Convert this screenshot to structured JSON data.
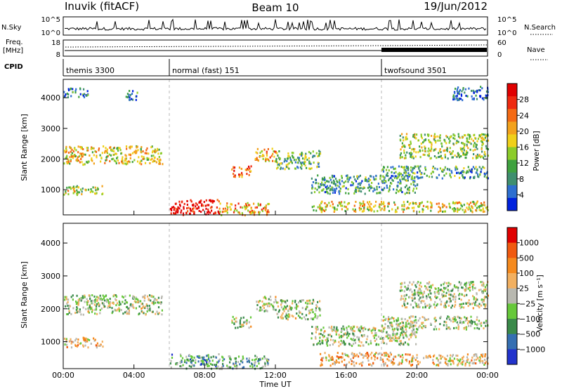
{
  "header": {
    "station": "Inuvik (fitACF)",
    "beam": "Beam 10",
    "date": "19/Jun/2012"
  },
  "top_panels": {
    "nsky_label": "N.Sky",
    "nsky_ticks": [
      "10^5",
      "10^0"
    ],
    "nsearch_label": "N.Search",
    "nsearch_ticks": [
      "10^5",
      "10^0"
    ],
    "freq_label": "Freq.",
    "freq_unit": "[MHz]",
    "freq_ticks": [
      "18",
      "8"
    ],
    "nave_label": "Nave",
    "nave_ticks": [
      "60",
      "0"
    ],
    "cpid_label": "CPID"
  },
  "cpid_modes": [
    {
      "name": "themis 3300",
      "start_hour": 0
    },
    {
      "name": "normal (fast) 151",
      "start_hour": 6
    },
    {
      "name": "twofsound 3501",
      "start_hour": 18
    }
  ],
  "chart_data": [
    {
      "type": "heatmap",
      "panel": "power",
      "ylabel": "Slant Range [km]",
      "ylim": [
        180,
        4600
      ],
      "yticks": [
        1000,
        2000,
        3000,
        4000
      ],
      "xlim_hours": [
        0,
        24
      ],
      "colorbar_label": "Power [dB]",
      "colorbar_ticks": [
        "4",
        "8",
        "12",
        "16",
        "20",
        "24",
        "28"
      ],
      "colorbar_colors": [
        "#0022dd",
        "#2e6fd0",
        "#3f8f6f",
        "#3fa23f",
        "#8ccc2a",
        "#f0d01a",
        "#f3a21c",
        "#f46a14",
        "#ef2a10",
        "#e00000"
      ],
      "scatter_regions": [
        {
          "t0": 0.0,
          "t1": 5.6,
          "r0": 1850,
          "r1": 2450,
          "level": 0.55
        },
        {
          "t0": 0.0,
          "t1": 2.2,
          "r0": 850,
          "r1": 1150,
          "level": 0.5
        },
        {
          "t0": 0.0,
          "t1": 1.4,
          "r0": 4050,
          "r1": 4350,
          "level": 0.2
        },
        {
          "t0": 3.5,
          "t1": 4.2,
          "r0": 3950,
          "r1": 4300,
          "level": 0.2
        },
        {
          "t0": 6.0,
          "t1": 8.8,
          "r0": 200,
          "r1": 700,
          "level": 0.95
        },
        {
          "t0": 8.8,
          "t1": 11.6,
          "r0": 200,
          "r1": 600,
          "level": 0.65
        },
        {
          "t0": 9.5,
          "t1": 10.6,
          "r0": 1450,
          "r1": 1800,
          "level": 0.75
        },
        {
          "t0": 10.8,
          "t1": 12.0,
          "r0": 1950,
          "r1": 2400,
          "level": 0.6
        },
        {
          "t0": 12.0,
          "t1": 14.5,
          "r0": 1700,
          "r1": 2300,
          "level": 0.35
        },
        {
          "t0": 14.0,
          "t1": 24.0,
          "r0": 300,
          "r1": 650,
          "level": 0.55
        },
        {
          "t0": 14.0,
          "t1": 20.0,
          "r0": 900,
          "r1": 1500,
          "level": 0.3
        },
        {
          "t0": 19.0,
          "t1": 24.0,
          "r0": 2050,
          "r1": 2850,
          "level": 0.45
        },
        {
          "t0": 18.0,
          "t1": 24.0,
          "r0": 1400,
          "r1": 1800,
          "level": 0.3
        },
        {
          "t0": 22.0,
          "t1": 24.0,
          "r0": 3950,
          "r1": 4400,
          "level": 0.15
        }
      ]
    },
    {
      "type": "heatmap",
      "panel": "velocity",
      "ylabel": "Slant Range [km]",
      "ylim": [
        180,
        4600
      ],
      "yticks": [
        1000,
        2000,
        3000,
        4000
      ],
      "xlim_hours": [
        0,
        24
      ],
      "xlabel": "Time UT",
      "xticks": [
        "00:00",
        "04:00",
        "08:00",
        "12:00",
        "16:00",
        "20:00",
        "00:00"
      ],
      "colorbar_label": "Velocity [m s⁻¹]",
      "colorbar_ticks": [
        "1000",
        "500",
        "100",
        "25",
        "−25",
        "−100",
        "−500",
        "−1000"
      ],
      "colorbar_colors": [
        "#2233cc",
        "#356fb2",
        "#3a8a4a",
        "#66c83a",
        "#b8b8b0",
        "#f2b060",
        "#f58a1e",
        "#f05a10",
        "#e00000"
      ],
      "scatter_regions": [
        {
          "t0": 0.0,
          "t1": 5.6,
          "r0": 1850,
          "r1": 2450,
          "level": 0.45
        },
        {
          "t0": 0.0,
          "t1": 2.2,
          "r0": 850,
          "r1": 1150,
          "level": 0.6
        },
        {
          "t0": 6.0,
          "t1": 8.8,
          "r0": 200,
          "r1": 650,
          "level": 0.3
        },
        {
          "t0": 8.8,
          "t1": 11.6,
          "r0": 200,
          "r1": 600,
          "level": 0.35
        },
        {
          "t0": 9.5,
          "t1": 10.6,
          "r0": 1450,
          "r1": 1800,
          "level": 0.45
        },
        {
          "t0": 10.8,
          "t1": 12.0,
          "r0": 1950,
          "r1": 2400,
          "level": 0.45
        },
        {
          "t0": 12.0,
          "t1": 14.5,
          "r0": 1700,
          "r1": 2300,
          "level": 0.45
        },
        {
          "t0": 14.5,
          "t1": 18.5,
          "r0": 300,
          "r1": 700,
          "level": 0.65
        },
        {
          "t0": 18.5,
          "t1": 24.0,
          "r0": 300,
          "r1": 650,
          "level": 0.6
        },
        {
          "t0": 14.0,
          "t1": 20.0,
          "r0": 900,
          "r1": 1500,
          "level": 0.45
        },
        {
          "t0": 19.0,
          "t1": 24.0,
          "r0": 2050,
          "r1": 2850,
          "level": 0.45
        },
        {
          "t0": 18.0,
          "t1": 24.0,
          "r0": 1400,
          "r1": 1800,
          "level": 0.45
        }
      ]
    }
  ]
}
